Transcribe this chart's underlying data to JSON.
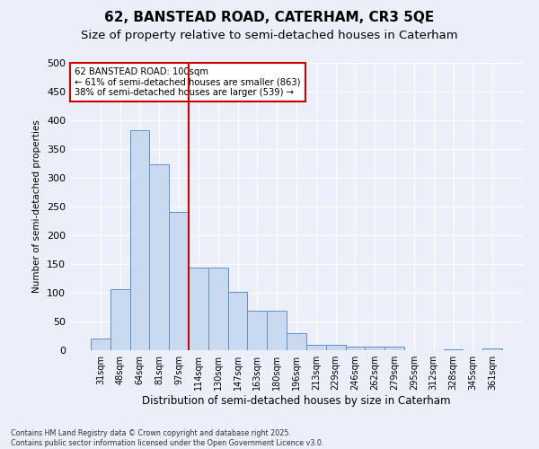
{
  "title": "62, BANSTEAD ROAD, CATERHAM, CR3 5QE",
  "subtitle": "Size of property relative to semi-detached houses in Caterham",
  "xlabel": "Distribution of semi-detached houses by size in Caterham",
  "ylabel": "Number of semi-detached properties",
  "categories": [
    "31sqm",
    "48sqm",
    "64sqm",
    "81sqm",
    "97sqm",
    "114sqm",
    "130sqm",
    "147sqm",
    "163sqm",
    "180sqm",
    "196sqm",
    "213sqm",
    "229sqm",
    "246sqm",
    "262sqm",
    "279sqm",
    "295sqm",
    "312sqm",
    "328sqm",
    "345sqm",
    "361sqm"
  ],
  "values": [
    20,
    107,
    383,
    323,
    241,
    143,
    143,
    101,
    68,
    68,
    29,
    10,
    10,
    6,
    6,
    6,
    0,
    0,
    2,
    0,
    3
  ],
  "bar_color": "#c9d9f0",
  "bar_edge_color": "#6090c8",
  "vline_color": "#cc0000",
  "annotation_text": "62 BANSTEAD ROAD: 100sqm\n← 61% of semi-detached houses are smaller (863)\n38% of semi-detached houses are larger (539) →",
  "annotation_box_color": "#ffffff",
  "annotation_box_edge": "#cc0000",
  "footer": "Contains HM Land Registry data © Crown copyright and database right 2025.\nContains public sector information licensed under the Open Government Licence v3.0.",
  "ylim": [
    0,
    500
  ],
  "yticks": [
    0,
    50,
    100,
    150,
    200,
    250,
    300,
    350,
    400,
    450,
    500
  ],
  "bg_color": "#eaeff9",
  "title_fontsize": 11,
  "subtitle_fontsize": 9.5
}
